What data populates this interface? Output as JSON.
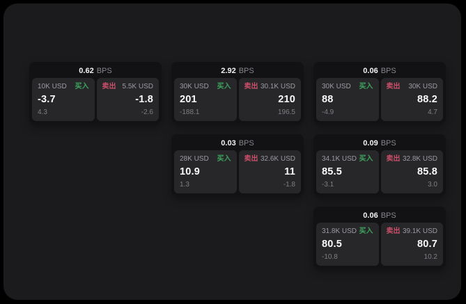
{
  "labels": {
    "bps_unit": "BPS",
    "buy": "买入",
    "sell": "卖出"
  },
  "colors": {
    "buy_green": "#3da35f",
    "sell_red": "#ca4f68",
    "window_bg": "#1b1b1d",
    "card_bg": "#121214",
    "panel_bg": "#27272a"
  },
  "cards": [
    {
      "bps": "0.62",
      "buy": {
        "amount": "10K USD",
        "price": "-3.7",
        "sub": "4.3"
      },
      "sell": {
        "amount": "5.5K USD",
        "price": "-1.8",
        "sub": "-2.6"
      }
    },
    {
      "bps": "2.92",
      "buy": {
        "amount": "30K USD",
        "price": "201",
        "sub": "-188.1"
      },
      "sell": {
        "amount": "30.1K USD",
        "price": "210",
        "sub": "196.5"
      }
    },
    {
      "bps": "0.06",
      "buy": {
        "amount": "30K USD",
        "price": "88",
        "sub": "-4.9"
      },
      "sell": {
        "amount": "30K USD",
        "price": "88.2",
        "sub": "4.7"
      }
    },
    {
      "bps": "0.03",
      "buy": {
        "amount": "28K USD",
        "price": "10.9",
        "sub": "1.3"
      },
      "sell": {
        "amount": "32.6K USD",
        "price": "11",
        "sub": "-1.8"
      }
    },
    {
      "bps": "0.09",
      "buy": {
        "amount": "34.1K USD",
        "price": "85.5",
        "sub": "-3.1"
      },
      "sell": {
        "amount": "32.8K USD",
        "price": "85.8",
        "sub": "3.0"
      }
    },
    {
      "bps": "0.06",
      "buy": {
        "amount": "31.8K USD",
        "price": "80.5",
        "sub": "-10.8"
      },
      "sell": {
        "amount": "39.1K USD",
        "price": "80.7",
        "sub": "10.2"
      }
    }
  ]
}
